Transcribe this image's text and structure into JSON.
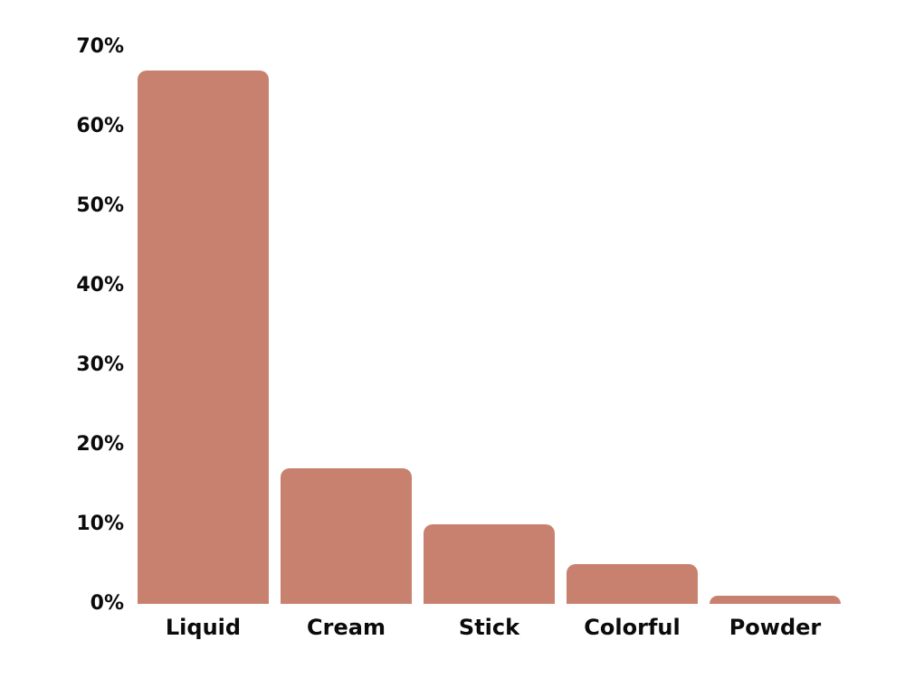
{
  "chart_data": {
    "type": "bar",
    "categories": [
      "Liquid",
      "Cream",
      "Stick",
      "Colorful",
      "Powder"
    ],
    "values": [
      67,
      17,
      10,
      5,
      1
    ],
    "title": "",
    "xlabel": "",
    "ylabel": "",
    "ylim": [
      0,
      70
    ],
    "ytick_step": 10,
    "ytick_labels": [
      "0%",
      "10%",
      "20%",
      "30%",
      "40%",
      "50%",
      "60%",
      "70%"
    ],
    "bar_color": "#C9816F",
    "text_color": "#0B0B0B",
    "background": "#FFFFFF",
    "grid": false,
    "legend": false
  }
}
